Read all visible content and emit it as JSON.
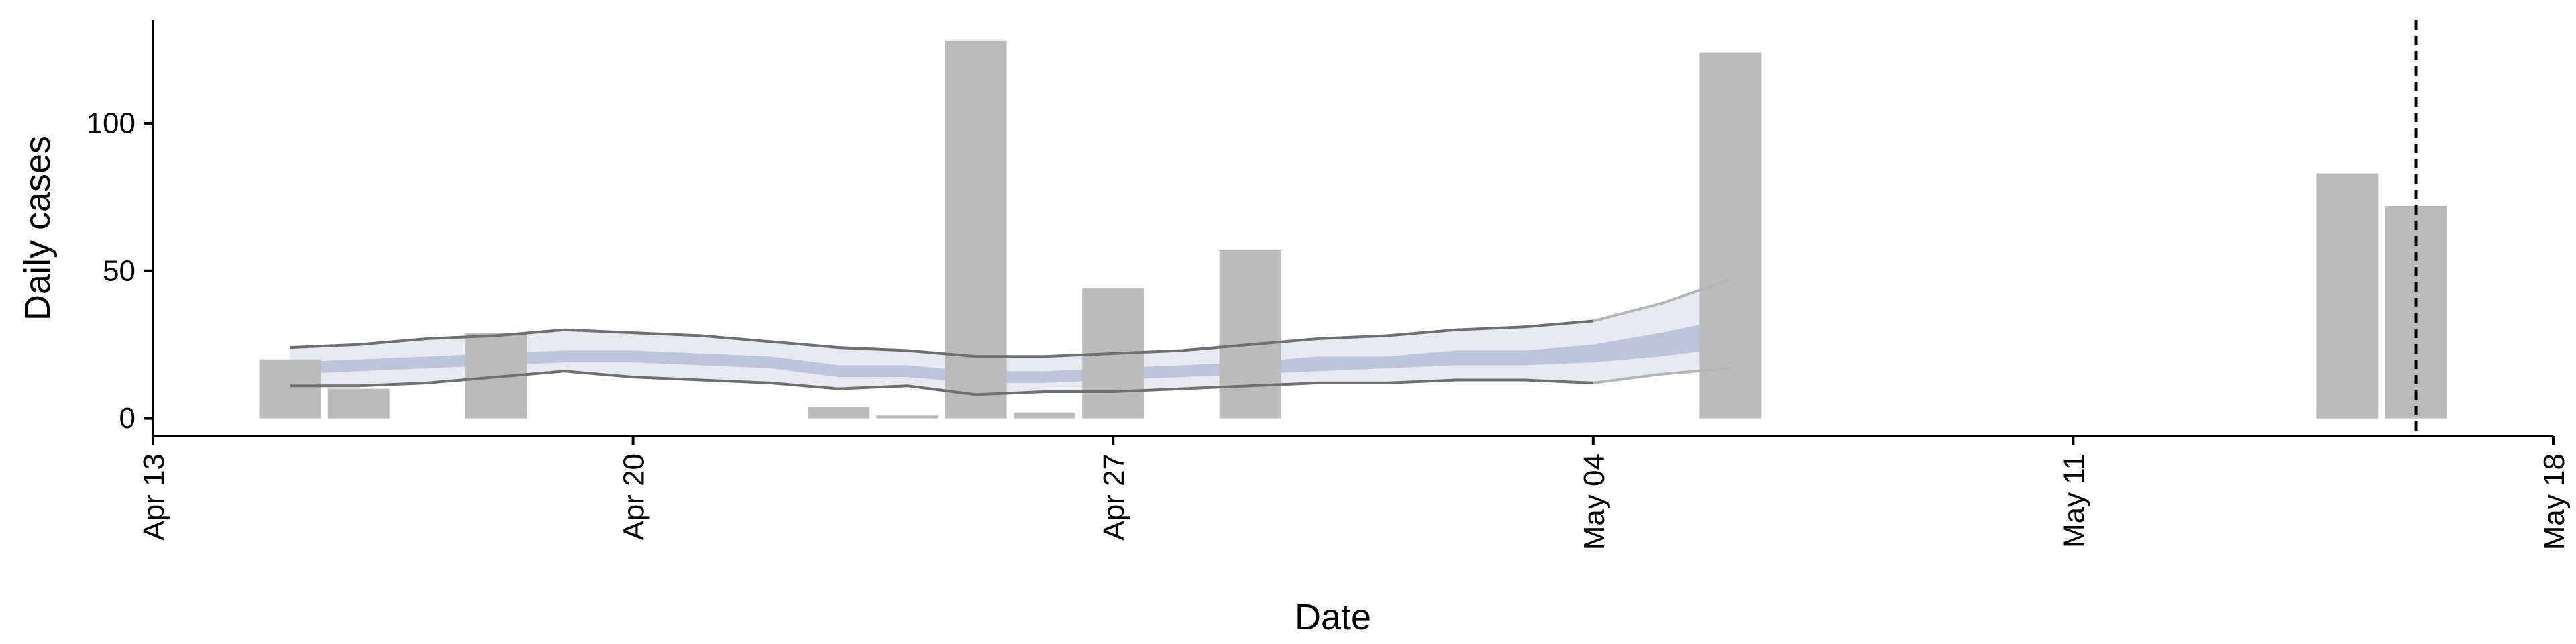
{
  "chart_data": {
    "type": "bar",
    "title": "",
    "xlabel": "Date",
    "ylabel": "Daily cases",
    "x_axis": {
      "type": "date",
      "range": [
        "2020-04-13",
        "2020-05-18"
      ],
      "ticks": [
        {
          "date": "2020-04-13",
          "label": "Apr 13"
        },
        {
          "date": "2020-04-20",
          "label": "Apr 20"
        },
        {
          "date": "2020-04-27",
          "label": "Apr 27"
        },
        {
          "date": "2020-05-04",
          "label": "May 04"
        },
        {
          "date": "2020-05-11",
          "label": "May 11"
        },
        {
          "date": "2020-05-18",
          "label": "May 18"
        }
      ]
    },
    "y_axis": {
      "range": [
        -6,
        135
      ],
      "ticks": [
        {
          "value": 0,
          "label": "0"
        },
        {
          "value": 50,
          "label": "50"
        },
        {
          "value": 100,
          "label": "100"
        }
      ]
    },
    "grid": false,
    "bars": {
      "color": "#bbbbbb",
      "points": [
        {
          "date": "2020-04-15",
          "value": 20
        },
        {
          "date": "2020-04-16",
          "value": 10
        },
        {
          "date": "2020-04-18",
          "value": 29
        },
        {
          "date": "2020-04-23",
          "value": 4
        },
        {
          "date": "2020-04-24",
          "value": 1
        },
        {
          "date": "2020-04-25",
          "value": 128
        },
        {
          "date": "2020-04-26",
          "value": 2
        },
        {
          "date": "2020-04-27",
          "value": 44
        },
        {
          "date": "2020-04-29",
          "value": 57
        },
        {
          "date": "2020-05-06",
          "value": 124
        },
        {
          "date": "2020-05-15",
          "value": 83
        },
        {
          "date": "2020-05-16",
          "value": 72
        }
      ]
    },
    "estimate": {
      "dates": [
        "2020-04-15",
        "2020-04-16",
        "2020-04-17",
        "2020-04-18",
        "2020-04-19",
        "2020-04-20",
        "2020-04-21",
        "2020-04-22",
        "2020-04-23",
        "2020-04-24",
        "2020-04-25",
        "2020-04-26",
        "2020-04-27",
        "2020-04-28",
        "2020-04-29",
        "2020-04-30",
        "2020-05-01",
        "2020-05-02",
        "2020-05-03",
        "2020-05-04",
        "2020-05-05",
        "2020-05-06"
      ],
      "outer_upper": [
        24,
        25,
        27,
        28,
        30,
        29,
        28,
        26,
        24,
        23,
        21,
        21,
        22,
        23,
        25,
        27,
        28,
        30,
        31,
        33,
        39,
        47
      ],
      "outer_lower": [
        11,
        11,
        12,
        14,
        16,
        14,
        13,
        12,
        10,
        11,
        8,
        9,
        9,
        10,
        11,
        12,
        12,
        13,
        13,
        12,
        15,
        17
      ],
      "inner_upper": [
        19,
        20,
        21,
        22,
        23,
        23,
        22,
        21,
        18,
        18,
        16,
        16,
        17,
        18,
        19,
        21,
        21,
        23,
        23,
        25,
        29,
        34
      ],
      "inner_lower": [
        15,
        16,
        17,
        18,
        19,
        19,
        18,
        17,
        14,
        14,
        12,
        12,
        13,
        14,
        15,
        16,
        17,
        18,
        18,
        19,
        21,
        24
      ],
      "fit_end_date": "2020-05-04",
      "projection_end_date": "2020-05-06",
      "colors": {
        "outer_band": "#e8eaf2",
        "inner_band": "#bcc5da",
        "bound_line": "#6f6f6f",
        "projection_line": "#b5b5b5"
      }
    },
    "reference_line": {
      "date": "2020-05-16",
      "style": "dashed",
      "color": "#000000"
    }
  }
}
